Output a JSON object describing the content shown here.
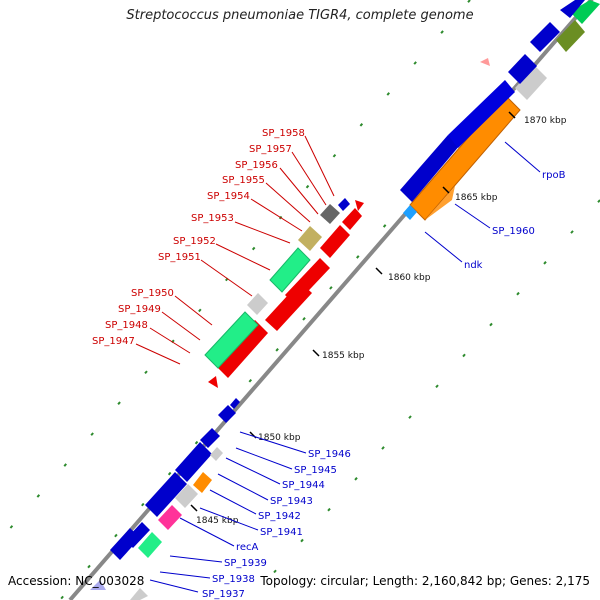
{
  "title": "Streptococcus pneumoniae TIGR4, complete genome",
  "footer": {
    "accession": "Accession: NC_003028",
    "topology": "Topology: circular; Length: 2,160,842 bp; Genes: 2,175"
  },
  "colors": {
    "backbone": "#8a8a8a",
    "label_left": "#cc0000",
    "label_right": "#0000cc",
    "tick": "#228b22",
    "scale_tick": "#000000"
  },
  "scale_labels": [
    "1845 kbp",
    "1850 kbp",
    "1855 kbp",
    "1860 kbp",
    "1865 kbp",
    "1870 kbp"
  ],
  "left_labels": [
    "SP_1958",
    "SP_1957",
    "SP_1956",
    "SP_1955",
    "SP_1954",
    "SP_1953",
    "SP_1952",
    "SP_1951",
    "SP_1950",
    "SP_1949",
    "SP_1948",
    "SP_1947"
  ],
  "right_labels_top": [
    "rpoB",
    "SP_1960",
    "ndk"
  ],
  "right_labels_bottom": [
    "SP_1946",
    "SP_1945",
    "SP_1944",
    "SP_1943",
    "SP_1942",
    "SP_1941",
    "recA",
    "SP_1939",
    "SP_1938",
    "SP_1937"
  ]
}
